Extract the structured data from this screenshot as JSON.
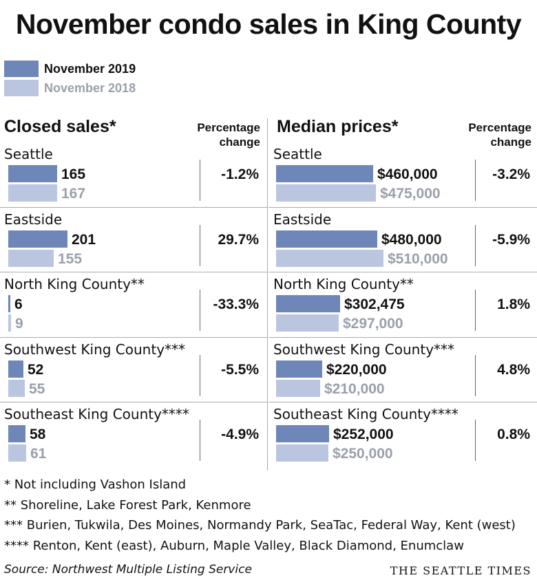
{
  "title": "November condo sales in King County",
  "legend": [
    {
      "label": "November 2019",
      "color": "#6f86b8"
    },
    {
      "label": "November 2018",
      "color": "#bac6e0"
    }
  ],
  "chart_data": [
    {
      "type": "bar",
      "title": "Closed sales*",
      "pct_header": [
        "Percentage",
        "change"
      ],
      "categories": [
        "Seattle",
        "Eastside",
        "North King County**",
        "Southwest King County***",
        "Southeast King County****"
      ],
      "series": [
        {
          "name": "November 2019",
          "values": [
            165,
            201,
            6,
            52,
            58
          ],
          "labels": [
            "165",
            "201",
            "6",
            "52",
            "58"
          ]
        },
        {
          "name": "November 2018",
          "values": [
            167,
            155,
            9,
            55,
            61
          ],
          "labels": [
            "167",
            "155",
            "9",
            "55",
            "61"
          ]
        }
      ],
      "pct_change": [
        "-1.2%",
        "29.7%",
        "-33.3%",
        "-5.5%",
        "-4.9%"
      ],
      "max": 201
    },
    {
      "type": "bar",
      "title": "Median prices*",
      "pct_header": [
        "Percentage",
        "change"
      ],
      "categories": [
        "Seattle",
        "Eastside",
        "North King County**",
        "Southwest King County***",
        "Southeast King County****"
      ],
      "series": [
        {
          "name": "November 2019",
          "values": [
            460000,
            480000,
            302475,
            220000,
            252000
          ],
          "labels": [
            "$460,000",
            "$480,000",
            "$302,475",
            "$220,000",
            "$252,000"
          ]
        },
        {
          "name": "November 2018",
          "values": [
            475000,
            510000,
            297000,
            210000,
            250000
          ],
          "labels": [
            "$475,000",
            "$510,000",
            "$297,000",
            "$210,000",
            "$250,000"
          ]
        }
      ],
      "pct_change": [
        "-3.2%",
        "-5.9%",
        "1.8%",
        "4.8%",
        "0.8%"
      ],
      "max": 510000
    }
  ],
  "footnotes": [
    "* Not including Vashon Island",
    "** Shoreline, Lake Forest Park, Kenmore",
    "*** Burien, Tukwila, Des Moines, Normandy Park, SeaTac, Federal Way, Kent (west)",
    "**** Renton, Kent (east), Auburn, Maple Valley, Black Diamond, Enumclaw"
  ],
  "source": "Source: Northwest Multiple Listing Service",
  "brand": "THE SEATTLE TIMES"
}
